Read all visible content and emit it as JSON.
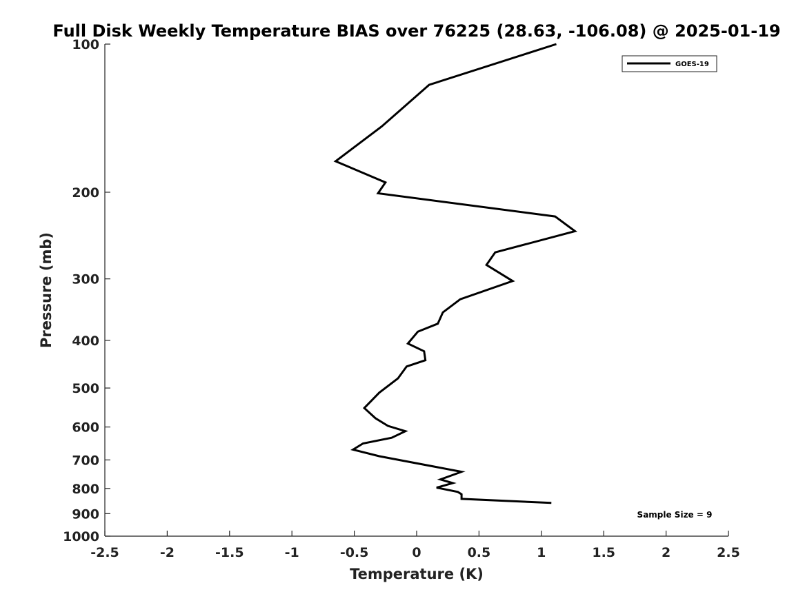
{
  "chart_data": {
    "type": "line",
    "title": "Full Disk Weekly Temperature BIAS over 76225 (28.63, -106.08) @ 2025-01-19",
    "xlabel": "Temperature (K)",
    "ylabel": "Pressure (mb)",
    "xlim": [
      -2.5,
      2.5
    ],
    "ylim": [
      1000,
      100
    ],
    "y_scale": "log",
    "x_ticks": [
      -2.5,
      -2,
      -1.5,
      -1,
      -0.5,
      0,
      0.5,
      1,
      1.5,
      2,
      2.5
    ],
    "x_tick_labels": [
      "-2.5",
      "-2",
      "-1.5",
      "-1",
      "-0.5",
      "0",
      "0.5",
      "1",
      "1.5",
      "2",
      "2.5"
    ],
    "y_ticks": [
      100,
      200,
      300,
      400,
      500,
      600,
      700,
      800,
      900,
      1000
    ],
    "y_tick_labels": [
      "100",
      "200",
      "300",
      "400",
      "500",
      "600",
      "700",
      "800",
      "900",
      "1000"
    ],
    "grid": false,
    "legend_position": "top-right",
    "line_color": "#000000",
    "series": [
      {
        "name": "GOES-19",
        "x": [
          1.12,
          0.1,
          -0.28,
          -0.65,
          -0.25,
          -0.31,
          1.11,
          1.27,
          0.63,
          0.56,
          0.77,
          0.35,
          0.21,
          0.17,
          0.01,
          -0.07,
          0.06,
          0.07,
          -0.08,
          -0.15,
          -0.3,
          -0.42,
          -0.33,
          -0.23,
          -0.09,
          -0.2,
          -0.43,
          -0.51,
          -0.3,
          0.36,
          0.19,
          0.29,
          0.16,
          0.33,
          0.36,
          0.36,
          1.08
        ],
        "y": [
          100,
          121,
          147,
          173,
          191,
          201,
          224,
          240,
          265,
          281,
          303,
          330,
          351,
          370,
          384,
          406,
          421,
          439,
          452,
          478,
          511,
          549,
          576,
          597,
          612,
          631,
          648,
          667,
          688,
          740,
          767,
          780,
          797,
          813,
          822,
          840,
          856
        ]
      }
    ],
    "annotations": [
      "Sample Size = 9"
    ]
  }
}
